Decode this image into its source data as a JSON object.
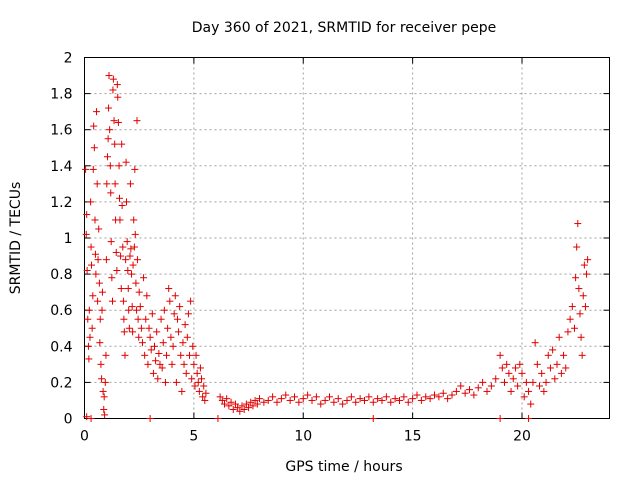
{
  "chart_data": {
    "type": "scatter",
    "title": "Day 360 of 2021, SRMTID for receiver pepe",
    "xlabel": "GPS time / hours",
    "ylabel": "SRMTID / TECUs",
    "xlim": [
      0,
      24
    ],
    "ylim": [
      0,
      2
    ],
    "x_ticks": [
      0,
      5,
      10,
      15,
      20
    ],
    "x_tick_labels": [
      "0",
      "5",
      "10",
      "15",
      "20"
    ],
    "y_ticks": [
      0,
      0.2,
      0.4,
      0.6,
      0.8,
      1,
      1.2,
      1.4,
      1.6,
      1.8,
      2
    ],
    "y_tick_labels": [
      "0",
      "0.2",
      "0.4",
      "0.6",
      "0.8",
      "1",
      "1.2",
      "1.4",
      "1.6",
      "1.8",
      "2"
    ],
    "grid": true,
    "marker": "plus",
    "color": "#e00000",
    "series": [
      {
        "name": "SRMTID",
        "points": [
          [
            0.05,
            1.38
          ],
          [
            0.08,
            1.02
          ],
          [
            0.1,
            1.13
          ],
          [
            0.12,
            0.82
          ],
          [
            0.15,
            0.55
          ],
          [
            0.18,
            0.4
          ],
          [
            0.2,
            0.33
          ],
          [
            0.22,
            0.6
          ],
          [
            0.25,
            0.45
          ],
          [
            0.28,
            1.2
          ],
          [
            0.3,
            0.95
          ],
          [
            0.32,
            0.85
          ],
          [
            0.35,
            0.5
          ],
          [
            0.38,
            0.68
          ],
          [
            0.4,
            1.38
          ],
          [
            0.42,
            1.62
          ],
          [
            0.45,
            1.5
          ],
          [
            0.48,
            1.1
          ],
          [
            0.5,
            0.91
          ],
          [
            0.52,
            0.8
          ],
          [
            0.55,
            1.7
          ],
          [
            0.58,
            1.3
          ],
          [
            0.6,
            0.65
          ],
          [
            0.62,
            0.88
          ],
          [
            0.65,
            1.05
          ],
          [
            0.68,
            0.75
          ],
          [
            0.7,
            0.42
          ],
          [
            0.72,
            0.55
          ],
          [
            0.75,
            0.3
          ],
          [
            0.78,
            0.22
          ],
          [
            0.8,
            0.6
          ],
          [
            0.82,
            0.7
          ],
          [
            0.85,
            0.15
          ],
          [
            0.88,
            0.05
          ],
          [
            0.9,
            0.12
          ],
          [
            0.92,
            0.02
          ],
          [
            0.95,
            0.2
          ],
          [
            0.98,
            0.35
          ],
          [
            1.0,
            0.88
          ],
          [
            1.02,
            1.3
          ],
          [
            1.05,
            1.45
          ],
          [
            1.08,
            1.55
          ],
          [
            1.1,
            1.72
          ],
          [
            1.12,
            1.9
          ],
          [
            1.15,
            1.6
          ],
          [
            1.18,
            1.4
          ],
          [
            1.2,
            1.25
          ],
          [
            1.22,
            0.98
          ],
          [
            1.25,
            0.78
          ],
          [
            1.28,
            0.65
          ],
          [
            1.3,
            1.82
          ],
          [
            1.32,
            1.88
          ],
          [
            1.35,
            1.65
          ],
          [
            1.38,
            1.52
          ],
          [
            1.4,
            1.3
          ],
          [
            1.42,
            1.1
          ],
          [
            1.45,
            0.92
          ],
          [
            1.48,
            0.82
          ],
          [
            1.5,
            1.85
          ],
          [
            1.52,
            1.78
          ],
          [
            1.55,
            1.64
          ],
          [
            1.58,
            1.4
          ],
          [
            1.6,
            1.22
          ],
          [
            1.62,
            1.1
          ],
          [
            1.65,
            0.9
          ],
          [
            1.68,
            0.72
          ],
          [
            1.7,
            1.52
          ],
          [
            1.72,
            1.18
          ],
          [
            1.75,
            0.95
          ],
          [
            1.78,
            0.65
          ],
          [
            1.8,
            0.55
          ],
          [
            1.82,
            0.48
          ],
          [
            1.85,
            0.35
          ],
          [
            1.88,
            0.88
          ],
          [
            1.9,
            1.42
          ],
          [
            1.92,
            1.2
          ],
          [
            1.95,
            0.98
          ],
          [
            1.98,
            0.82
          ],
          [
            2.0,
            0.72
          ],
          [
            2.02,
            0.6
          ],
          [
            2.05,
            0.5
          ],
          [
            2.08,
            0.9
          ],
          [
            2.1,
            1.3
          ],
          [
            2.12,
            0.94
          ],
          [
            2.15,
            0.8
          ],
          [
            2.18,
            0.62
          ],
          [
            2.2,
            0.48
          ],
          [
            2.22,
            0.85
          ],
          [
            2.25,
            1.1
          ],
          [
            2.28,
            0.95
          ],
          [
            2.3,
            1.38
          ],
          [
            2.32,
            1.02
          ],
          [
            2.35,
            0.75
          ],
          [
            2.38,
            0.6
          ],
          [
            2.4,
            1.65
          ],
          [
            2.42,
            0.88
          ],
          [
            2.45,
            0.55
          ],
          [
            2.48,
            0.45
          ],
          [
            2.5,
            0.7
          ],
          [
            2.55,
            0.62
          ],
          [
            2.6,
            0.5
          ],
          [
            2.65,
            0.42
          ],
          [
            2.7,
            0.78
          ],
          [
            2.75,
            0.35
          ],
          [
            2.8,
            0.55
          ],
          [
            2.85,
            0.68
          ],
          [
            2.9,
            0.3
          ],
          [
            2.95,
            0.5
          ],
          [
            3.0,
            0.45
          ],
          [
            3.05,
            0.38
          ],
          [
            3.1,
            0.58
          ],
          [
            3.15,
            0.25
          ],
          [
            3.2,
            0.4
          ],
          [
            3.25,
            0.32
          ],
          [
            3.3,
            0.48
          ],
          [
            3.35,
            0.22
          ],
          [
            3.4,
            0.36
          ],
          [
            3.45,
            0.3
          ],
          [
            3.5,
            0.55
          ],
          [
            3.55,
            0.28
          ],
          [
            3.6,
            0.42
          ],
          [
            3.65,
            0.6
          ],
          [
            3.7,
            0.2
          ],
          [
            3.75,
            0.35
          ],
          [
            3.8,
            0.5
          ],
          [
            3.85,
            0.72
          ],
          [
            3.9,
            0.65
          ],
          [
            3.95,
            0.45
          ],
          [
            4.0,
            0.3
          ],
          [
            4.05,
            0.4
          ],
          [
            4.1,
            0.58
          ],
          [
            4.15,
            0.68
          ],
          [
            4.2,
            0.2
          ],
          [
            4.25,
            0.55
          ],
          [
            4.3,
            0.48
          ],
          [
            4.35,
            0.62
          ],
          [
            4.4,
            0.35
          ],
          [
            4.45,
            0.15
          ],
          [
            4.5,
            0.42
          ],
          [
            4.55,
            0.3
          ],
          [
            4.6,
            0.52
          ],
          [
            4.65,
            0.25
          ],
          [
            4.7,
            0.45
          ],
          [
            4.75,
            0.58
          ],
          [
            4.8,
            0.35
          ],
          [
            4.85,
            0.65
          ],
          [
            4.9,
            0.22
          ],
          [
            4.95,
            0.4
          ],
          [
            5.0,
            0.3
          ],
          [
            5.05,
            0.18
          ],
          [
            5.1,
            0.35
          ],
          [
            5.15,
            0.25
          ],
          [
            5.2,
            0.2
          ],
          [
            5.25,
            0.15
          ],
          [
            5.3,
            0.28
          ],
          [
            5.35,
            0.22
          ],
          [
            5.4,
            0.12
          ],
          [
            5.45,
            0.18
          ],
          [
            5.5,
            0.1
          ],
          [
            5.55,
            0.14
          ],
          [
            0.1,
            0.01
          ],
          [
            0.3,
            0.0
          ],
          [
            3.0,
            0.0
          ],
          [
            6.1,
            0.0
          ],
          [
            13.2,
            0.0
          ],
          [
            19.0,
            0.0
          ],
          [
            20.3,
            0.0
          ],
          [
            6.2,
            0.12
          ],
          [
            6.3,
            0.1
          ],
          [
            6.4,
            0.08
          ],
          [
            6.5,
            0.11
          ],
          [
            6.6,
            0.07
          ],
          [
            6.7,
            0.09
          ],
          [
            6.8,
            0.05
          ],
          [
            6.9,
            0.08
          ],
          [
            7.0,
            0.06
          ],
          [
            7.1,
            0.04
          ],
          [
            7.2,
            0.07
          ],
          [
            7.3,
            0.05
          ],
          [
            7.4,
            0.08
          ],
          [
            7.5,
            0.06
          ],
          [
            7.6,
            0.09
          ],
          [
            7.7,
            0.07
          ],
          [
            7.8,
            0.1
          ],
          [
            7.9,
            0.08
          ],
          [
            8.0,
            0.11
          ],
          [
            8.2,
            0.09
          ],
          [
            8.4,
            0.1
          ],
          [
            8.6,
            0.12
          ],
          [
            8.8,
            0.09
          ],
          [
            9.0,
            0.11
          ],
          [
            9.2,
            0.13
          ],
          [
            9.4,
            0.1
          ],
          [
            9.6,
            0.12
          ],
          [
            9.8,
            0.09
          ],
          [
            10.0,
            0.11
          ],
          [
            10.2,
            0.13
          ],
          [
            10.4,
            0.1
          ],
          [
            10.6,
            0.12
          ],
          [
            10.8,
            0.08
          ],
          [
            11.0,
            0.1
          ],
          [
            11.2,
            0.12
          ],
          [
            11.4,
            0.09
          ],
          [
            11.6,
            0.11
          ],
          [
            11.8,
            0.08
          ],
          [
            12.0,
            0.1
          ],
          [
            12.2,
            0.12
          ],
          [
            12.4,
            0.09
          ],
          [
            12.6,
            0.11
          ],
          [
            12.8,
            0.1
          ],
          [
            13.0,
            0.12
          ],
          [
            13.2,
            0.09
          ],
          [
            13.4,
            0.11
          ],
          [
            13.6,
            0.1
          ],
          [
            13.8,
            0.12
          ],
          [
            14.0,
            0.09
          ],
          [
            14.2,
            0.11
          ],
          [
            14.4,
            0.1
          ],
          [
            14.6,
            0.12
          ],
          [
            14.8,
            0.09
          ],
          [
            15.0,
            0.11
          ],
          [
            15.2,
            0.13
          ],
          [
            15.4,
            0.1
          ],
          [
            15.6,
            0.12
          ],
          [
            15.8,
            0.11
          ],
          [
            16.0,
            0.13
          ],
          [
            16.2,
            0.12
          ],
          [
            16.4,
            0.14
          ],
          [
            16.6,
            0.11
          ],
          [
            16.8,
            0.13
          ],
          [
            17.0,
            0.15
          ],
          [
            17.2,
            0.18
          ],
          [
            17.4,
            0.14
          ],
          [
            17.6,
            0.16
          ],
          [
            17.8,
            0.13
          ],
          [
            18.0,
            0.17
          ],
          [
            18.2,
            0.2
          ],
          [
            18.4,
            0.15
          ],
          [
            18.6,
            0.18
          ],
          [
            18.8,
            0.22
          ],
          [
            19.0,
            0.35
          ],
          [
            19.1,
            0.28
          ],
          [
            19.2,
            0.2
          ],
          [
            19.3,
            0.3
          ],
          [
            19.4,
            0.25
          ],
          [
            19.5,
            0.15
          ],
          [
            19.6,
            0.22
          ],
          [
            19.7,
            0.28
          ],
          [
            19.8,
            0.18
          ],
          [
            19.9,
            0.3
          ],
          [
            20.0,
            0.25
          ],
          [
            20.1,
            0.12
          ],
          [
            20.2,
            0.2
          ],
          [
            20.3,
            0.15
          ],
          [
            20.4,
            0.08
          ],
          [
            20.5,
            0.2
          ],
          [
            20.6,
            0.42
          ],
          [
            20.7,
            0.3
          ],
          [
            20.8,
            0.18
          ],
          [
            20.9,
            0.25
          ],
          [
            21.0,
            0.15
          ],
          [
            21.1,
            0.2
          ],
          [
            21.2,
            0.35
          ],
          [
            21.3,
            0.28
          ],
          [
            21.4,
            0.38
          ],
          [
            21.5,
            0.22
          ],
          [
            21.6,
            0.3
          ],
          [
            21.7,
            0.45
          ],
          [
            21.8,
            0.25
          ],
          [
            21.9,
            0.35
          ],
          [
            22.0,
            0.28
          ],
          [
            22.1,
            0.48
          ],
          [
            22.2,
            0.55
          ],
          [
            22.3,
            0.62
          ],
          [
            22.4,
            0.5
          ],
          [
            22.45,
            0.78
          ],
          [
            22.5,
            0.95
          ],
          [
            22.55,
            1.08
          ],
          [
            22.6,
            0.72
          ],
          [
            22.65,
            0.58
          ],
          [
            22.7,
            0.45
          ],
          [
            22.75,
            0.35
          ],
          [
            22.8,
            0.68
          ],
          [
            22.85,
            0.85
          ],
          [
            22.9,
            0.62
          ],
          [
            22.95,
            0.8
          ],
          [
            23.0,
            0.88
          ]
        ]
      }
    ]
  }
}
